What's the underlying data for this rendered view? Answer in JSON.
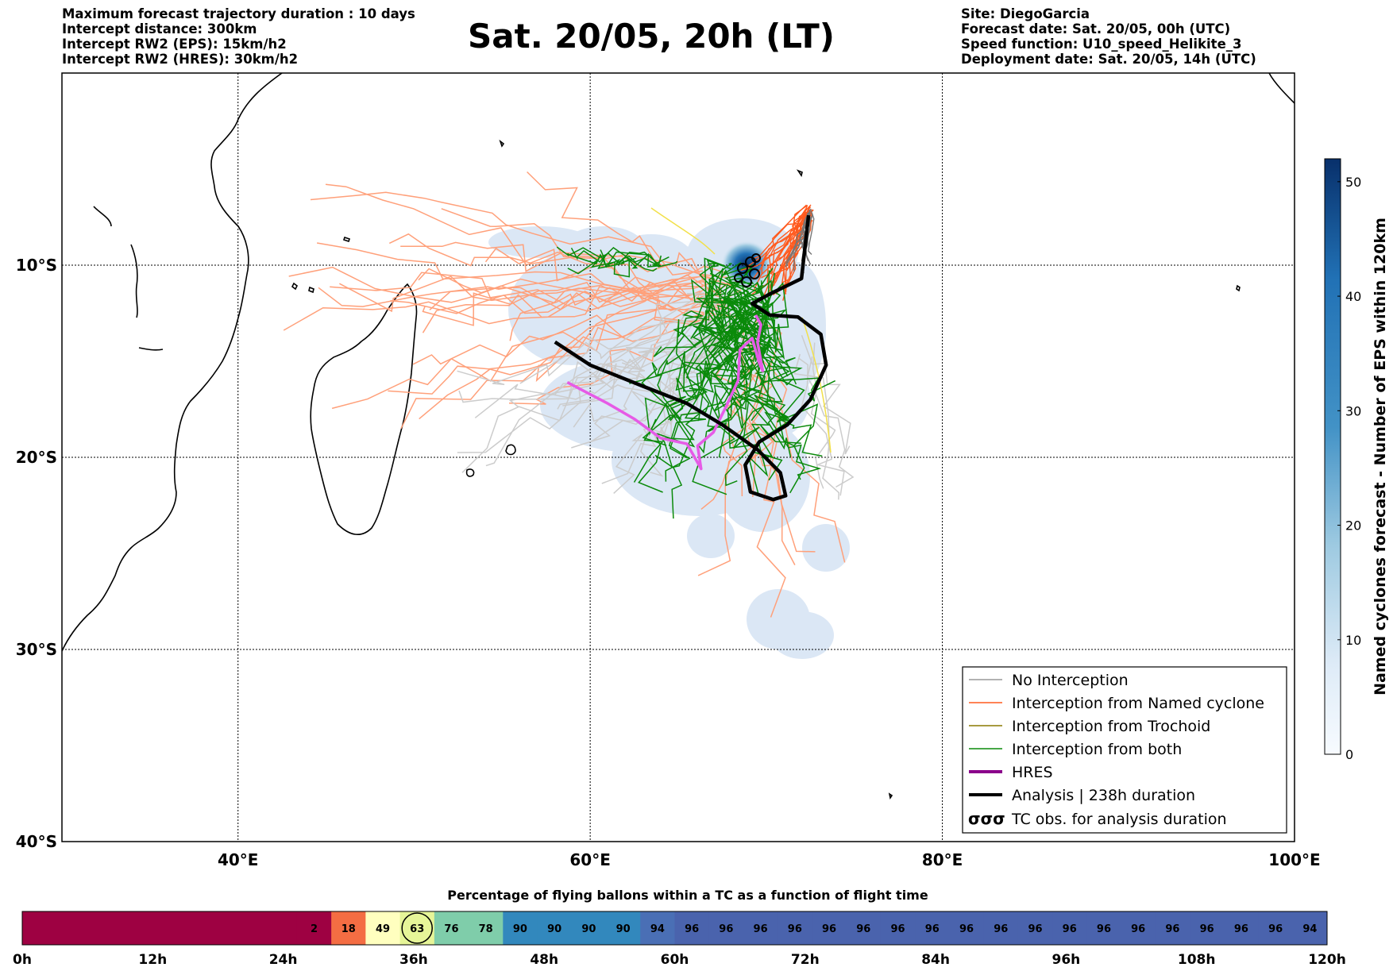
{
  "header": {
    "left": [
      "Maximum forecast trajectory duration : 10 days",
      "Intercept distance: 300km",
      "Intercept RW2 (EPS):  15km/h2",
      "Intercept RW2 (HRES): 30km/h2"
    ],
    "title": "Sat. 20/05, 20h (LT)",
    "right": [
      "Site: DiegoGarcia",
      "Forecast date: Sat. 20/05, 00h (UTC)",
      "Speed function: U10_speed_Helikite_3",
      "Deployment date: Sat. 20/05, 14h (UTC)"
    ]
  },
  "colors": {
    "no_interception": "#999999",
    "named_cyclone": "#ff5a1e",
    "trochoid": "#8a7a00",
    "both": "#0a8a0a",
    "hres": "#8b008b",
    "analysis": "#000000",
    "eps_light_member": "#ffa07a",
    "gray_member": "#cccccc",
    "density_low": "#dbe7f5",
    "density_high": "#08306b"
  },
  "legend": [
    {
      "label": "No Interception",
      "style": "gray-line"
    },
    {
      "label": "Interception from Named cyclone",
      "style": "orange-line"
    },
    {
      "label": "Interception from Trochoid",
      "style": "olive-line"
    },
    {
      "label": "Interception from both",
      "style": "green-line"
    },
    {
      "label": "HRES",
      "style": "purple-thick"
    },
    {
      "label": "Analysis | 238h duration",
      "style": "black-thick"
    },
    {
      "label": "TC obs. for analysis duration",
      "style": "tc-symbols"
    }
  ],
  "legend_symbol": "σσσ",
  "colorbar": {
    "label": "Named cyclones forecast - Number of EPS within 120km",
    "ticks": [
      "0",
      "10",
      "20",
      "30",
      "40",
      "50"
    ]
  },
  "timeline": {
    "title": "Percentage of flying ballons within a TC as a function of flight time",
    "tick_labels": [
      "0h",
      "12h",
      "24h",
      "36h",
      "48h",
      "60h",
      "72h",
      "84h",
      "96h",
      "108h",
      "120h"
    ]
  },
  "chart_data": {
    "type": "map-trajectories",
    "x_axis": {
      "ticks": [
        "40°E",
        "60°E",
        "80°E",
        "100°E"
      ],
      "range": [
        30,
        100
      ]
    },
    "y_axis": {
      "ticks": [
        "10°S",
        "20°S",
        "30°S",
        "40°S"
      ],
      "range": [
        0,
        -40
      ]
    },
    "grid": true,
    "legend_position": "lower-right",
    "hres_track": [
      [
        58.7,
        -16.1
      ],
      [
        61,
        -17.2
      ],
      [
        62.5,
        -18
      ],
      [
        64,
        -19
      ],
      [
        65.5,
        -19.3
      ],
      [
        66.3,
        -20.6
      ],
      [
        66.1,
        -19.4
      ],
      [
        67,
        -18.7
      ],
      [
        67.8,
        -17.2
      ],
      [
        68.4,
        -16
      ],
      [
        68.5,
        -14.4
      ],
      [
        69.2,
        -13.8
      ],
      [
        69.6,
        -15.1
      ],
      [
        69.8,
        -15.5
      ],
      [
        69.5,
        -14
      ],
      [
        69.7,
        -13.1
      ],
      [
        69.4,
        -12.6
      ]
    ],
    "analysis_track": [
      [
        58,
        -14
      ],
      [
        60,
        -15.2
      ],
      [
        63,
        -16.3
      ],
      [
        65.5,
        -17.2
      ],
      [
        67.5,
        -18.3
      ],
      [
        69.5,
        -19.6
      ],
      [
        70.8,
        -20.8
      ],
      [
        71.1,
        -22
      ],
      [
        70.4,
        -22.2
      ],
      [
        69.1,
        -21.8
      ],
      [
        68.8,
        -20.4
      ],
      [
        69.6,
        -19.2
      ],
      [
        71.2,
        -18.3
      ],
      [
        72.5,
        -17
      ],
      [
        73.4,
        -15.2
      ],
      [
        73.1,
        -13.6
      ],
      [
        71.8,
        -12.7
      ],
      [
        70.2,
        -12.6
      ],
      [
        69.2,
        -12
      ],
      [
        70.2,
        -11.5
      ],
      [
        72,
        -10.7
      ],
      [
        72.4,
        -7.4
      ]
    ],
    "timeline_cells": [
      {
        "label": "",
        "span": 8,
        "color": "#9e0142"
      },
      {
        "label": "2",
        "span": 1,
        "color": "#9e0142"
      },
      {
        "label": "18",
        "span": 1,
        "color": "#f46d43"
      },
      {
        "label": "49",
        "span": 1,
        "color": "#ffffbf"
      },
      {
        "label": "63",
        "span": 1,
        "color": "#e6f598",
        "circled": true
      },
      {
        "label": "76",
        "span": 1,
        "color": "#7fcdaa"
      },
      {
        "label": "78",
        "span": 1,
        "color": "#7fcdaa"
      },
      {
        "label": "90",
        "span": 1,
        "color": "#3288bd"
      },
      {
        "label": "90",
        "span": 1,
        "color": "#3288bd"
      },
      {
        "label": "90",
        "span": 1,
        "color": "#3288bd"
      },
      {
        "label": "90",
        "span": 1,
        "color": "#3288bd"
      },
      {
        "label": "94",
        "span": 1,
        "color": "#4a6fb5"
      },
      {
        "label": "96",
        "span": 1,
        "color": "#4a63ad"
      },
      {
        "label": "96",
        "span": 1,
        "color": "#4a63ad"
      },
      {
        "label": "96",
        "span": 1,
        "color": "#4a63ad"
      },
      {
        "label": "96",
        "span": 1,
        "color": "#4a63ad"
      },
      {
        "label": "96",
        "span": 1,
        "color": "#4a63ad"
      },
      {
        "label": "96",
        "span": 1,
        "color": "#4a63ad"
      },
      {
        "label": "96",
        "span": 1,
        "color": "#4a63ad"
      },
      {
        "label": "96",
        "span": 1,
        "color": "#4a63ad"
      },
      {
        "label": "96",
        "span": 1,
        "color": "#4a63ad"
      },
      {
        "label": "96",
        "span": 1,
        "color": "#4a63ad"
      },
      {
        "label": "96",
        "span": 1,
        "color": "#4a63ad"
      },
      {
        "label": "96",
        "span": 1,
        "color": "#4a63ad"
      },
      {
        "label": "96",
        "span": 1,
        "color": "#4a63ad"
      },
      {
        "label": "96",
        "span": 1,
        "color": "#4a63ad"
      },
      {
        "label": "96",
        "span": 1,
        "color": "#4a63ad"
      },
      {
        "label": "96",
        "span": 1,
        "color": "#4a63ad"
      },
      {
        "label": "96",
        "span": 1,
        "color": "#4a63ad"
      },
      {
        "label": "96",
        "span": 1,
        "color": "#4a63ad"
      },
      {
        "label": "94",
        "span": 1,
        "color": "#4a63ad"
      }
    ]
  }
}
